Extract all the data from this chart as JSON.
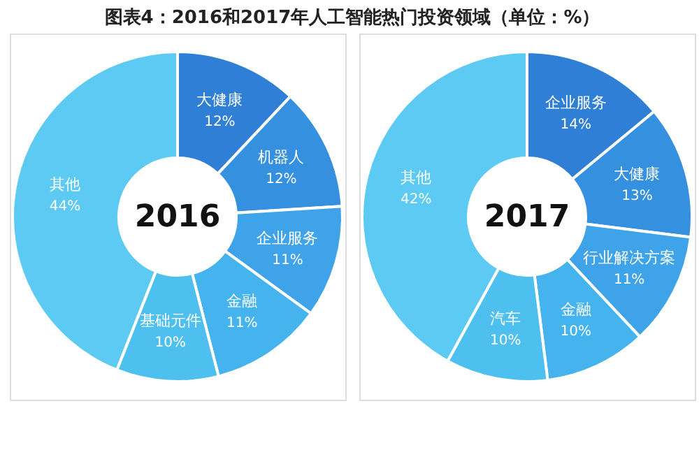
{
  "chart_data": [
    {
      "type": "donut",
      "title": "图表4：2016和2017年人工智能热门投资领域（单位：%）",
      "annotations": [
        "2016"
      ],
      "categories": [
        "大健康",
        "机器人",
        "企业服务",
        "金融",
        "基础元件",
        "其他"
      ],
      "values": [
        12,
        12,
        11,
        11,
        10,
        44
      ],
      "value_labels": [
        "12%",
        "12%",
        "11%",
        "11%",
        "10%",
        "44%"
      ],
      "colors": [
        "#2f7fd6",
        "#3590e0",
        "#3ea3e8",
        "#44b3ee",
        "#4ec0f0",
        "#5ccaf2"
      ],
      "legend": false
    },
    {
      "type": "donut",
      "annotations": [
        "2017"
      ],
      "categories": [
        "企业服务",
        "大健康",
        "行业解决方案",
        "金融",
        "汽车",
        "其他"
      ],
      "values": [
        14,
        13,
        11,
        10,
        10,
        42
      ],
      "value_labels": [
        "14%",
        "13%",
        "11%",
        "10%",
        "10%",
        "42%"
      ],
      "colors": [
        "#2f7fd6",
        "#3590e0",
        "#3ea3e8",
        "#44b3ee",
        "#4ec0f0",
        "#5ccaf2"
      ],
      "legend": false
    }
  ]
}
